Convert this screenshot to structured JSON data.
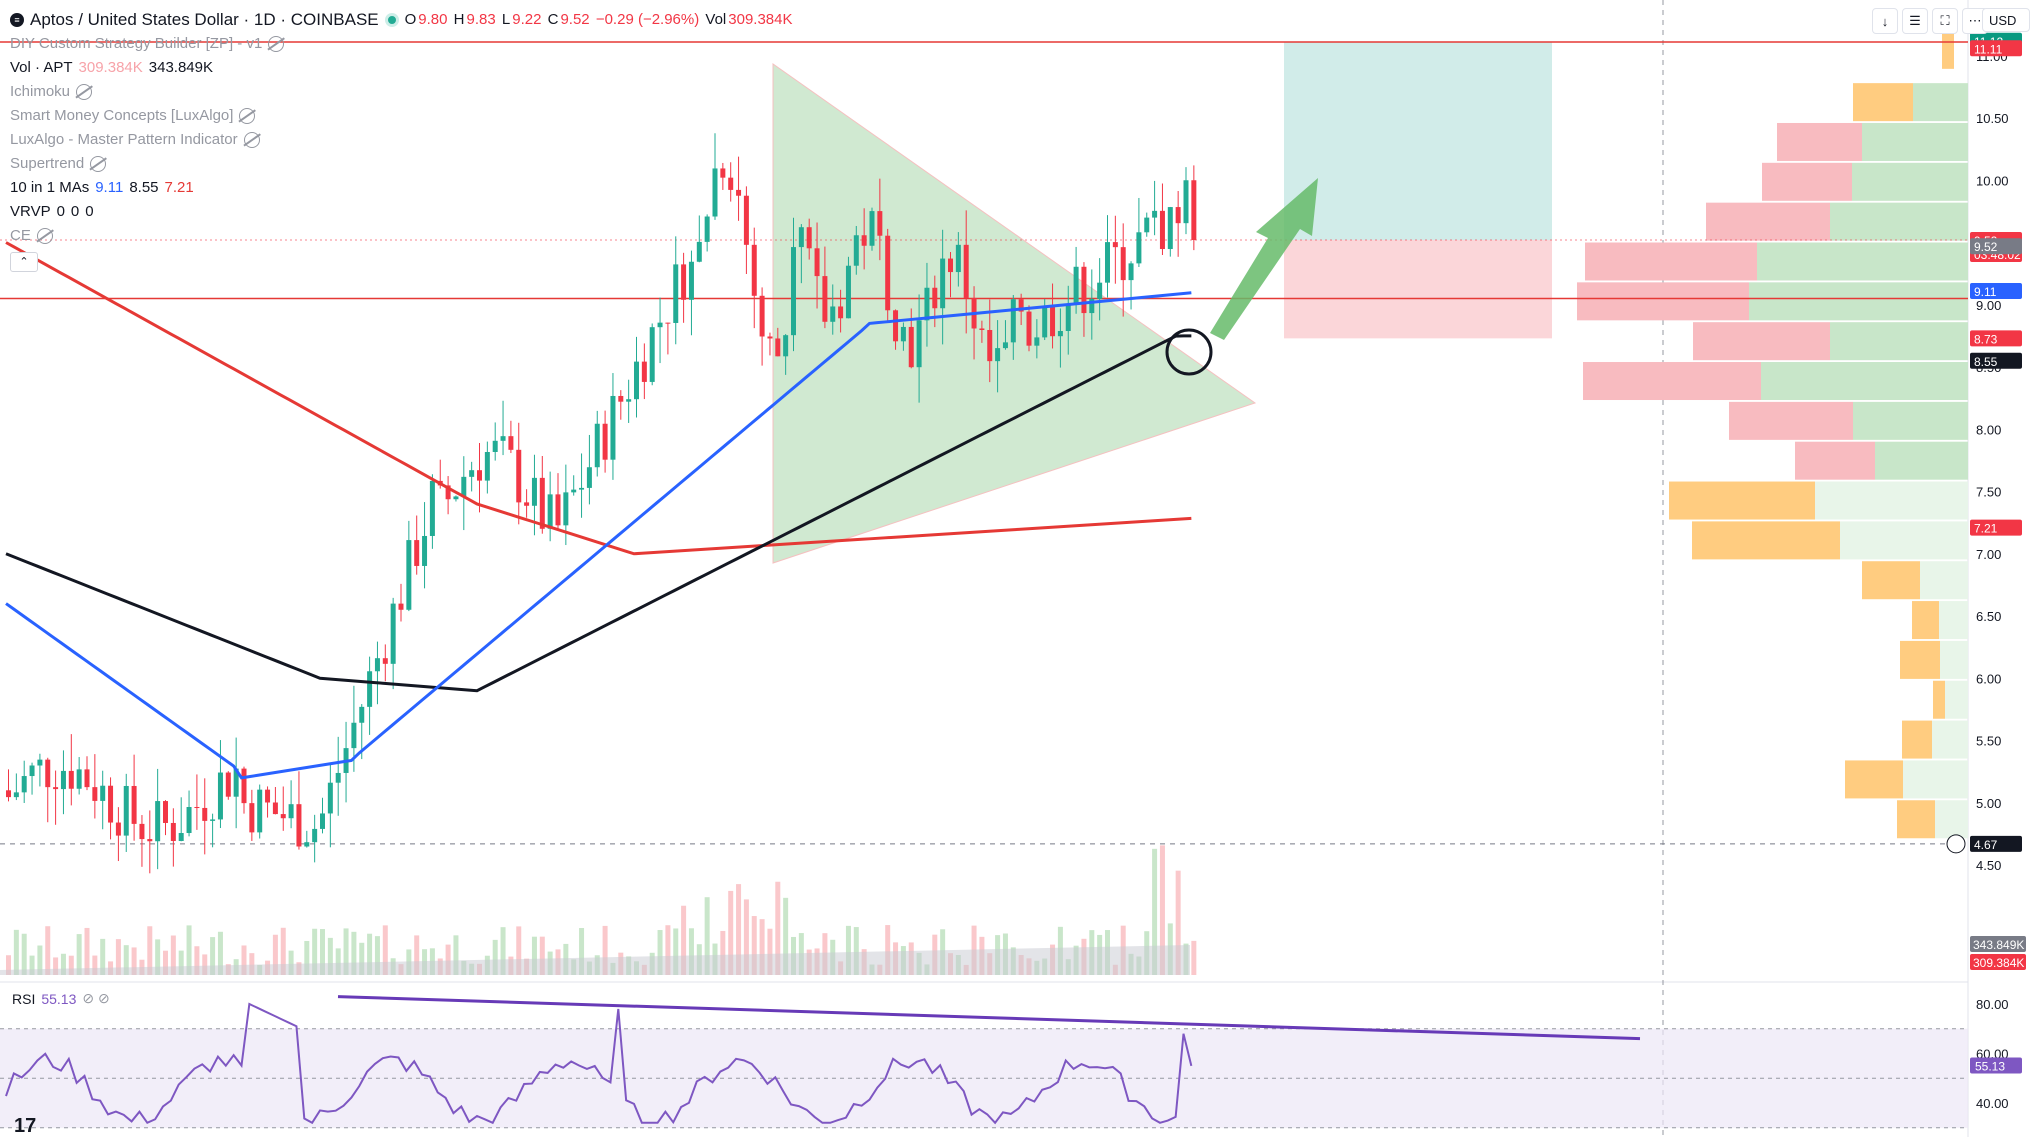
{
  "header": {
    "title": "Aptos / United States Dollar · 1D · COINBASE",
    "ohlc": {
      "o_label": "O",
      "o": "9.80",
      "h_label": "H",
      "h": "9.83",
      "l_label": "L",
      "l": "9.22",
      "c_label": "C",
      "c": "9.52",
      "change": "−0.29 (−2.96%)",
      "vol_label": "Vol",
      "vol": "309.384K"
    }
  },
  "indicators": [
    {
      "name": "DIY Custom Strategy Builder [ZP] - v1",
      "hidden": true
    },
    {
      "name": "Vol · APT",
      "values": [
        "309.384K",
        "343.849K"
      ]
    },
    {
      "name": "Ichimoku",
      "hidden": true
    },
    {
      "name": "Smart Money Concepts [LuxAlgo]",
      "hidden": true
    },
    {
      "name": "LuxAlgo - Master Pattern Indicator",
      "hidden": true
    },
    {
      "name": "Supertrend",
      "hidden": true
    },
    {
      "name": "10 in 1 MAs",
      "values": [
        "9.11",
        "8.55",
        "7.21"
      ]
    },
    {
      "name": "VRVP",
      "values": [
        "0",
        "0",
        "0"
      ]
    },
    {
      "name": "CE",
      "hidden": true
    }
  ],
  "rsi": {
    "label": "RSI",
    "value": "55.13"
  },
  "toolbar": {
    "currency": "USD"
  },
  "colors": {
    "up": "#22ab94",
    "down": "#f23645",
    "ma_blue": "#2962ff",
    "ma_black": "#131722",
    "ma_red": "#e53935",
    "rsi": "#7e57c2",
    "level": "#e53935"
  },
  "chart_data": {
    "type": "candlestick",
    "price_axis_ticks": [
      "11.50",
      "11.00",
      "10.50",
      "10.00",
      "9.50",
      "9.00",
      "8.50",
      "8.00",
      "7.50",
      "7.00",
      "6.50",
      "6.00",
      "5.50",
      "5.00",
      "4.50"
    ],
    "price_tags": [
      {
        "text": "11.12",
        "color": "#089981",
        "price": 11.12
      },
      {
        "text": "11.11",
        "color": "#f23645",
        "price": 11.06
      },
      {
        "text": "9.52",
        "text2": "03:48:02",
        "color": "#f23645",
        "price": 9.52
      },
      {
        "text": "9.52",
        "color": "#787b86",
        "price": 9.47
      },
      {
        "text": "9.11",
        "color": "#2962ff",
        "price": 9.11
      },
      {
        "text": "8.73",
        "color": "#f23645",
        "price": 8.73
      },
      {
        "text": "8.55",
        "color": "#131722",
        "price": 8.55
      },
      {
        "text": "7.21",
        "color": "#f23645",
        "price": 7.21
      },
      {
        "text": "4.67",
        "color": "#131722",
        "price": 4.67
      }
    ],
    "volume_tags": [
      {
        "text": "343.849K",
        "color": "#787b86"
      },
      {
        "text": "309.384K",
        "color": "#f23645"
      }
    ],
    "rsi_axis_ticks": [
      "80.00",
      "60.00",
      "40.00"
    ],
    "rsi_tag": "55.13",
    "horizontal_levels": [
      11.11,
      9.05
    ],
    "current_price": 9.52,
    "crosshair_price": 4.67
  }
}
